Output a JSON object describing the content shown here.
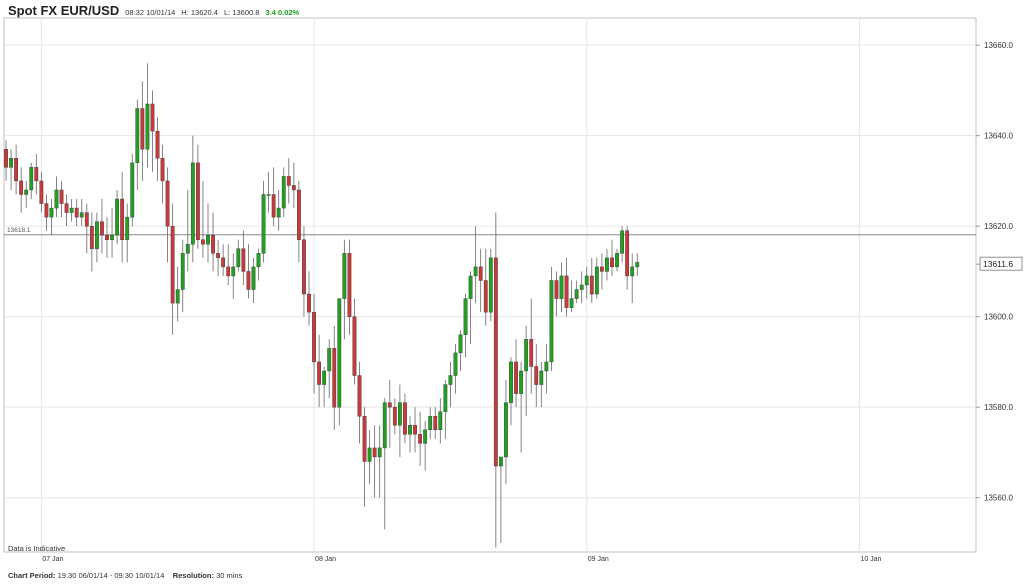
{
  "header": {
    "title": "Spot FX EUR/USD",
    "datetime": "08:32 10/01/14",
    "high": "H: 13620.4",
    "low": "L: 13600.8",
    "change": "3.4 0.02%"
  },
  "note": "Data is Indicative",
  "footer": {
    "period_label": "Chart Period:",
    "period_value": "19:30 06/01/14 - 09:30 10/01/14",
    "resolution_label": "Resolution:",
    "resolution_value": "30 mins"
  },
  "colors": {
    "up": "#22a022",
    "down": "#c83a3a",
    "grid": "#e6e6e6",
    "axis": "#999999",
    "line": "#888888"
  },
  "chart_data": {
    "type": "candlestick",
    "y_ticks": [
      "13560.0",
      "13580.0",
      "13600.0",
      "13620.0",
      "13640.0",
      "13660.0"
    ],
    "ylim": [
      13548,
      13666
    ],
    "x_labels": [
      "07 Jan",
      "08 Jan",
      "09 Jan",
      "10 Jan"
    ],
    "x_label_index": [
      7,
      61,
      115,
      169
    ],
    "grid": true,
    "reference_line": {
      "value": 13618.1,
      "label": "13618.1"
    },
    "last_price": {
      "value": 13611.6,
      "label": "13611.6"
    },
    "ohlc": [
      [
        13637,
        13639,
        13630,
        13633
      ],
      [
        13633,
        13637,
        13628,
        13635
      ],
      [
        13635,
        13638,
        13627,
        13630
      ],
      [
        13630,
        13633,
        13623,
        13627
      ],
      [
        13627,
        13630,
        13624,
        13628
      ],
      [
        13628,
        13634,
        13626,
        13633
      ],
      [
        13633,
        13636,
        13627,
        13630
      ],
      [
        13630,
        13632,
        13623,
        13625
      ],
      [
        13625,
        13627,
        13619,
        13622
      ],
      [
        13622,
        13626,
        13618,
        13624
      ],
      [
        13624,
        13631,
        13622,
        13628
      ],
      [
        13628,
        13630,
        13622,
        13625
      ],
      [
        13625,
        13627,
        13620,
        13623
      ],
      [
        13623,
        13626,
        13621,
        13624
      ],
      [
        13624,
        13626,
        13620,
        13622
      ],
      [
        13622,
        13626,
        13620,
        13623
      ],
      [
        13623,
        13625,
        13614,
        13620
      ],
      [
        13620,
        13623,
        13610,
        13615
      ],
      [
        13615,
        13623,
        13612,
        13621
      ],
      [
        13621,
        13626,
        13614,
        13618
      ],
      [
        13618,
        13622,
        13613,
        13617
      ],
      [
        13617,
        13624,
        13613,
        13618
      ],
      [
        13618,
        13628,
        13616,
        13626
      ],
      [
        13626,
        13632,
        13612,
        13617
      ],
      [
        13617,
        13625,
        13612,
        13622
      ],
      [
        13622,
        13636,
        13620,
        13634
      ],
      [
        13634,
        13648,
        13628,
        13646
      ],
      [
        13646,
        13652,
        13630,
        13637
      ],
      [
        13637,
        13656,
        13633,
        13647
      ],
      [
        13647,
        13650,
        13632,
        13641
      ],
      [
        13641,
        13644,
        13630,
        13635
      ],
      [
        13635,
        13638,
        13625,
        13630
      ],
      [
        13630,
        13633,
        13612,
        13620
      ],
      [
        13620,
        13625,
        13596,
        13603
      ],
      [
        13603,
        13611,
        13599,
        13606
      ],
      [
        13606,
        13617,
        13601,
        13614
      ],
      [
        13614,
        13628,
        13610,
        13616
      ],
      [
        13616,
        13640,
        13612,
        13634
      ],
      [
        13634,
        13638,
        13615,
        13617
      ],
      [
        13617,
        13630,
        13613,
        13616
      ],
      [
        13616,
        13625,
        13612,
        13618
      ],
      [
        13618,
        13623,
        13610,
        13614
      ],
      [
        13614,
        13617,
        13609,
        13613
      ],
      [
        13613,
        13616,
        13609,
        13611
      ],
      [
        13611,
        13616,
        13607,
        13609
      ],
      [
        13609,
        13614,
        13604,
        13611
      ],
      [
        13611,
        13617,
        13610,
        13615
      ],
      [
        13615,
        13619,
        13607,
        13610
      ],
      [
        13610,
        13616,
        13604,
        13606
      ],
      [
        13606,
        13613,
        13603,
        13611
      ],
      [
        13611,
        13615,
        13608,
        13614
      ],
      [
        13614,
        13630,
        13612,
        13627
      ],
      [
        13627,
        13632,
        13623,
        13627
      ],
      [
        13627,
        13633,
        13620,
        13622
      ],
      [
        13622,
        13628,
        13619,
        13624
      ],
      [
        13624,
        13633,
        13622,
        13631
      ],
      [
        13631,
        13635,
        13625,
        13629
      ],
      [
        13629,
        13634,
        13624,
        13628
      ],
      [
        13628,
        13630,
        13612,
        13617
      ],
      [
        13617,
        13620,
        13600,
        13605
      ],
      [
        13605,
        13610,
        13598,
        13601
      ],
      [
        13601,
        13605,
        13583,
        13590
      ],
      [
        13590,
        13596,
        13580,
        13585
      ],
      [
        13585,
        13589,
        13580,
        13588
      ],
      [
        13588,
        13595,
        13582,
        13593
      ],
      [
        13593,
        13598,
        13575,
        13580
      ],
      [
        13580,
        13604,
        13576,
        13604
      ],
      [
        13604,
        13617,
        13595,
        13614
      ],
      [
        13614,
        13617,
        13596,
        13600
      ],
      [
        13600,
        13604,
        13585,
        13587
      ],
      [
        13587,
        13590,
        13572,
        13578
      ],
      [
        13578,
        13580,
        13558,
        13568
      ],
      [
        13568,
        13575,
        13563,
        13571
      ],
      [
        13571,
        13576,
        13560,
        13569
      ],
      [
        13569,
        13576,
        13560,
        13571
      ],
      [
        13571,
        13582,
        13553,
        13581
      ],
      [
        13581,
        13586,
        13571,
        13580
      ],
      [
        13580,
        13582,
        13574,
        13576
      ],
      [
        13576,
        13585,
        13569,
        13581
      ],
      [
        13581,
        13583,
        13572,
        13574
      ],
      [
        13574,
        13578,
        13570,
        13576
      ],
      [
        13576,
        13580,
        13570,
        13574
      ],
      [
        13574,
        13579,
        13567,
        13572
      ],
      [
        13572,
        13577,
        13566,
        13575
      ],
      [
        13575,
        13580,
        13573,
        13578
      ],
      [
        13578,
        13580,
        13573,
        13575
      ],
      [
        13575,
        13582,
        13572,
        13579
      ],
      [
        13579,
        13586,
        13573,
        13585
      ],
      [
        13585,
        13590,
        13580,
        13587
      ],
      [
        13587,
        13594,
        13583,
        13592
      ],
      [
        13592,
        13597,
        13588,
        13596
      ],
      [
        13596,
        13605,
        13591,
        13604
      ],
      [
        13604,
        13610,
        13594,
        13609
      ],
      [
        13609,
        13620,
        13603,
        13611
      ],
      [
        13611,
        13615,
        13601,
        13608
      ],
      [
        13608,
        13615,
        13598,
        13601
      ],
      [
        13601,
        13615,
        13599,
        13613
      ],
      [
        13613,
        13623,
        13549,
        13567
      ],
      [
        13567,
        13569,
        13550,
        13569
      ],
      [
        13569,
        13586,
        13563,
        13581
      ],
      [
        13581,
        13591,
        13576,
        13590
      ],
      [
        13590,
        13595,
        13580,
        13583
      ],
      [
        13583,
        13590,
        13570,
        13588
      ],
      [
        13588,
        13598,
        13578,
        13595
      ],
      [
        13595,
        13604,
        13583,
        13589
      ],
      [
        13589,
        13594,
        13580,
        13585
      ],
      [
        13585,
        13590,
        13580,
        13588
      ],
      [
        13588,
        13594,
        13583,
        13590
      ],
      [
        13590,
        13611,
        13588,
        13608
      ],
      [
        13608,
        13610,
        13600,
        13604
      ],
      [
        13604,
        13612,
        13601,
        13609
      ],
      [
        13609,
        13613,
        13600,
        13602
      ],
      [
        13602,
        13608,
        13601,
        13604
      ],
      [
        13604,
        13608,
        13603,
        13606
      ],
      [
        13606,
        13610,
        13603,
        13607
      ],
      [
        13607,
        13611,
        13604,
        13609
      ],
      [
        13609,
        13613,
        13603,
        13605
      ],
      [
        13605,
        13613,
        13604,
        13611
      ],
      [
        13611,
        13614,
        13606,
        13610
      ],
      [
        13610,
        13615,
        13608,
        13613
      ],
      [
        13613,
        13617,
        13609,
        13611
      ],
      [
        13611,
        13615,
        13610,
        13614
      ],
      [
        13614,
        13620,
        13612,
        13619
      ],
      [
        13619,
        13620,
        13606,
        13609
      ],
      [
        13609,
        13614,
        13603,
        13611
      ],
      [
        13611,
        13614,
        13609,
        13612
      ]
    ]
  }
}
